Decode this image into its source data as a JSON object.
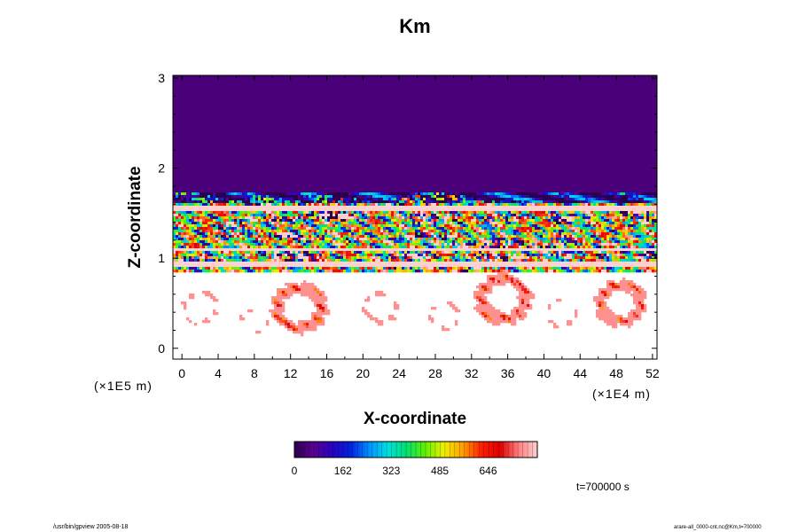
{
  "chart_data": {
    "type": "heatmap",
    "title": "Km",
    "xlabel": "X-coordinate",
    "ylabel": "Z-coordinate",
    "x_scale_label": "(×1E4 m)",
    "y_scale_label": "(×1E5 m)",
    "x_ticks": [
      "0",
      "4",
      "8",
      "12",
      "16",
      "20",
      "24",
      "28",
      "32",
      "36",
      "40",
      "44",
      "48",
      "52"
    ],
    "y_ticks": [
      "0",
      "1",
      "2",
      "3"
    ],
    "xlim": [
      -1,
      52.5
    ],
    "ylim": [
      -0.12,
      3.03
    ],
    "colorbar": {
      "ticks": [
        "0",
        "162",
        "323",
        "485",
        "646"
      ],
      "range": [
        0,
        810
      ],
      "stops": [
        "#2a0050",
        "#5a0090",
        "#2a00c0",
        "#0020e0",
        "#0090ff",
        "#00e0e0",
        "#00e070",
        "#60f000",
        "#f0f000",
        "#ffa000",
        "#ff2000",
        "#e00000",
        "#ff8080",
        "#ffd0d0"
      ]
    },
    "regions": [
      {
        "name": "upper uniform layer",
        "z_range": [
          1.72,
          3.03
        ],
        "value": 40
      },
      {
        "name": "turbulent band",
        "z_range": [
          0.85,
          1.72
        ],
        "value_range": [
          0,
          810
        ]
      },
      {
        "name": "lower plumes",
        "z_range": [
          -0.12,
          0.85
        ],
        "value_range": [
          0,
          700
        ]
      }
    ],
    "time_label": "t=700000 s"
  },
  "footer": {
    "left": "/usr/bin/gpview 2005-08-18",
    "right": "arare-all_0000-cnt.nc@Km,t=700000"
  }
}
